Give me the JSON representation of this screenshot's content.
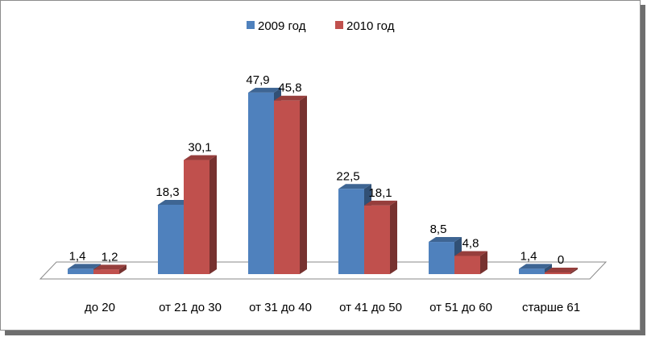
{
  "chart_data": {
    "type": "bar",
    "categories": [
      "до 20",
      "от 21 до 30",
      "от 31 до 40",
      "от 41 до 50",
      "от 51 до 60",
      "старше 61"
    ],
    "series": [
      {
        "name": "2009 год",
        "values": [
          1.4,
          18.3,
          47.9,
          22.5,
          8.5,
          1.4
        ],
        "labels": [
          "1,4",
          "18,3",
          "47,9",
          "22,5",
          "8,5",
          "1,4"
        ],
        "color": "#4f81bd"
      },
      {
        "name": "2010 год",
        "values": [
          1.2,
          30.1,
          45.8,
          18.1,
          4.8,
          0
        ],
        "labels": [
          "1,2",
          "30,1",
          "45,8",
          "18,1",
          "4,8",
          "0"
        ],
        "color": "#c0504d"
      }
    ],
    "ylim": [
      0,
      50
    ],
    "legend_position": "top",
    "grid": false,
    "style": "3d-clustered-column"
  }
}
